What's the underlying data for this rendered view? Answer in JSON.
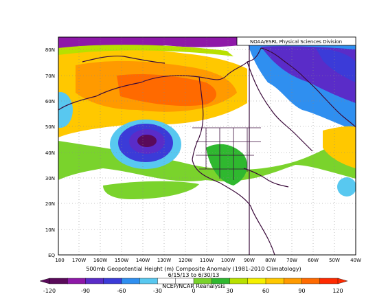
{
  "credit": "NOAA/ESRL Physical Sciences Division",
  "title_line1": "500mb Geopotential Height (m) Composite Anomaly (1981-2010 Climatology)",
  "title_line2": "6/15/13 to 6/30/13",
  "source": "NCEP/NCAR Reanalysis",
  "lat_labels": [
    "80N",
    "70N",
    "60N",
    "50N",
    "40N",
    "30N",
    "20N",
    "10N",
    "EQ"
  ],
  "lon_labels": [
    "180",
    "170W",
    "160W",
    "150W",
    "140W",
    "130W",
    "120W",
    "110W",
    "100W",
    "90W",
    "80W",
    "70W",
    "60W",
    "50W",
    "40W"
  ],
  "colorbar": {
    "labels": [
      "-120",
      "-90",
      "-60",
      "-30",
      "0",
      "30",
      "60",
      "90",
      "120"
    ],
    "colors": [
      "#5a0a5a",
      "#8e18a8",
      "#5a2cc8",
      "#3b3bd8",
      "#2f8ff0",
      "#58c8f0",
      "#ffffff",
      "#ffffff",
      "#7ad32c",
      "#2fb82f",
      "#b8e000",
      "#f5f000",
      "#ffc800",
      "#ff9a00",
      "#ff6a00",
      "#ff2a00"
    ]
  }
}
